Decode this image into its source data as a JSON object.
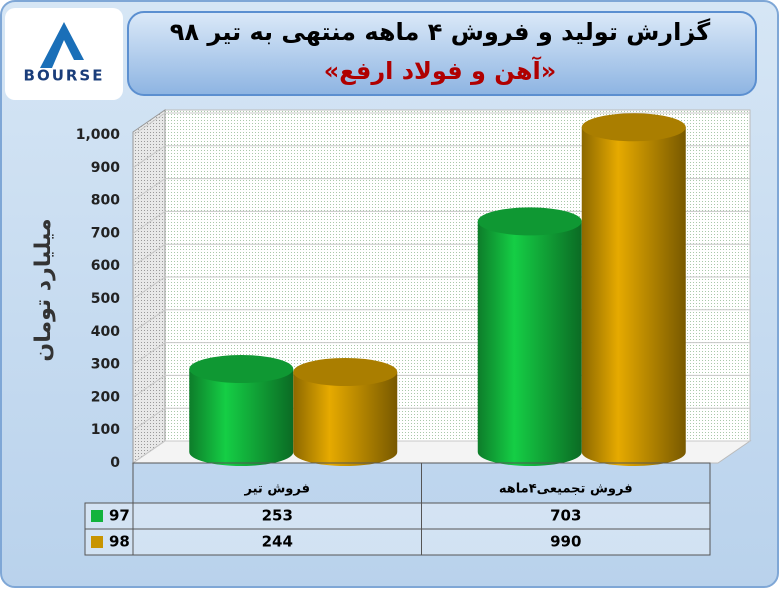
{
  "chart_data": {
    "type": "bar",
    "title": "گزارش تولید و فروش ۴ ماهه منتهی به تیر ۹۸",
    "subtitle": "«آهن و فولاد ارفع»",
    "logo": "BOURSE",
    "y_label": "میلیارد تومان",
    "categories": [
      "فروش تیر",
      "فروش تجمیعی۴ماهه"
    ],
    "series": [
      {
        "name": "97",
        "color": "#12b33c",
        "values": [
          253,
          703
        ]
      },
      {
        "name": "98",
        "color": "#c89400",
        "values": [
          244,
          990
        ]
      }
    ],
    "ylim": [
      0,
      1000
    ],
    "yticks": [
      0,
      100,
      200,
      300,
      400,
      500,
      600,
      700,
      800,
      900,
      {
        "value": 1000,
        "label": "1,000"
      }
    ],
    "grid": true
  }
}
